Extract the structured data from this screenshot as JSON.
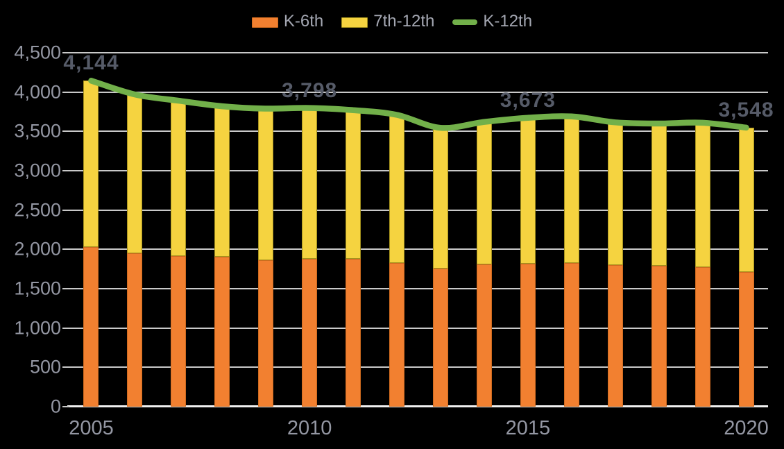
{
  "colors": {
    "background": "#000000",
    "k6_bar": "#F28030",
    "k6_bar_border": "#CE6A1F",
    "g712_bar": "#F5D340",
    "g712_bar_border": "#A5921E",
    "k12_line": "#72B04A",
    "gridline": "#C9C9C9",
    "axis_line": "#F0F0F0",
    "axis_label": "#9497A3",
    "legend_label": "#A4A7B2",
    "data_label": "#565B68"
  },
  "legend": [
    {
      "label": "K-6th",
      "swatch": "bar",
      "color": "#F28030",
      "border": "#CE6A1F"
    },
    {
      "label": "7th-12th",
      "swatch": "bar",
      "color": "#F5D340",
      "border": "#A5921E"
    },
    {
      "label": "K-12th",
      "swatch": "line",
      "color": "#72B04A",
      "border": "#72B04A"
    }
  ],
  "chart_data": {
    "type": "combo: stacked-bar + line",
    "title": "",
    "xlabel": "",
    "ylabel": "",
    "categories": [
      2005,
      2006,
      2007,
      2008,
      2009,
      2010,
      2011,
      2012,
      2013,
      2014,
      2015,
      2016,
      2017,
      2018,
      2019,
      2020
    ],
    "series": [
      {
        "name": "K-6th",
        "type": "bar",
        "stack": true,
        "color": "#F28030",
        "values": [
          2030,
          1950,
          1915,
          1910,
          1865,
          1880,
          1880,
          1830,
          1760,
          1810,
          1820,
          1825,
          1800,
          1790,
          1775,
          1710
        ]
      },
      {
        "name": "7th-12th",
        "type": "bar",
        "stack": true,
        "color": "#F5D340",
        "values": [
          2114,
          2020,
          1975,
          1910,
          1925,
          1918,
          1890,
          1880,
          1785,
          1810,
          1853,
          1865,
          1815,
          1810,
          1835,
          1838
        ]
      },
      {
        "name": "K-12th",
        "type": "line",
        "stack": false,
        "color": "#72B04A",
        "values": [
          4144,
          3970,
          3890,
          3820,
          3790,
          3798,
          3770,
          3710,
          3545,
          3620,
          3673,
          3690,
          3615,
          3600,
          3610,
          3548
        ]
      }
    ],
    "y_axis": {
      "min": 0,
      "max": 4500,
      "step": 500,
      "tick_labels": [
        "0",
        "500",
        "1,000",
        "1,500",
        "2,000",
        "2,500",
        "3,000",
        "3,500",
        "4,000",
        "4,500"
      ]
    },
    "x_axis": {
      "tick_labels": [
        "2005",
        "2010",
        "2015",
        "2020"
      ],
      "tick_years": [
        2005,
        2010,
        2015,
        2020
      ]
    },
    "annotations": [
      {
        "year": 2005,
        "text": "4,144"
      },
      {
        "year": 2010,
        "text": "3,798"
      },
      {
        "year": 2015,
        "text": "3,673"
      },
      {
        "year": 2020,
        "text": "3,548"
      }
    ],
    "grid": true,
    "legend_position": "top-center"
  }
}
